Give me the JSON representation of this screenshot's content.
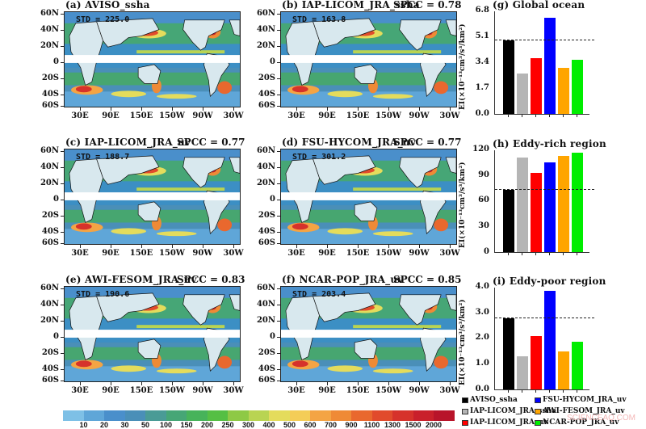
{
  "maps": {
    "lat_labels": [
      "60N",
      "40N",
      "20N",
      "0",
      "20S",
      "40S",
      "60S"
    ],
    "lon_labels": [
      "30E",
      "90E",
      "150E",
      "150W",
      "90W",
      "30W"
    ],
    "panels": [
      {
        "label": "(a) AVISO_ssha",
        "std": "STD = 225.0",
        "spcc": ""
      },
      {
        "label": "(b) IAP-LICOM_JRA_ssha",
        "std": "STD = 163.8",
        "spcc": "SPCC = 0.78"
      },
      {
        "label": "(c) IAP-LICOM_JRA_uv",
        "std": "STD = 188.7",
        "spcc": "SPCC = 0.77"
      },
      {
        "label": "(d) FSU-HYCOM_JRA_uv",
        "std": "STD = 301.2",
        "spcc": "SPCC = 0.77"
      },
      {
        "label": "(e) AWI-FESOM_JRA_uv",
        "std": "STD = 190.6",
        "spcc": "SPCC = 0.83"
      },
      {
        "label": "(f) NCAR-POP_JRA_uv",
        "std": "STD = 203.4",
        "spcc": "SPCC = 0.85"
      }
    ]
  },
  "colorbar": {
    "labels": [
      "10",
      "20",
      "30",
      "50",
      "100",
      "150",
      "200",
      "250",
      "300",
      "400",
      "500",
      "600",
      "700",
      "900",
      "1100",
      "1300",
      "1500",
      "2000"
    ],
    "colors": [
      "#7ec0e6",
      "#5fa6d8",
      "#4a8fcb",
      "#4a8fb8",
      "#4a9b96",
      "#46a676",
      "#47b35a",
      "#55bf44",
      "#8ec945",
      "#b9d452",
      "#e4dc5c",
      "#f4cd57",
      "#f4a444",
      "#ef8a36",
      "#e9682e",
      "#e14b2c",
      "#d6322b",
      "#c9202b",
      "#b8142a"
    ]
  },
  "chart_data": [
    {
      "type": "bar",
      "title": "(g) Global ocean",
      "ylabel": "EI(×10⁻¹³cm³/s³/km²)",
      "yticks": [
        "0.0",
        "1.7",
        "3.4",
        "5.1",
        "6.8"
      ],
      "ylim": [
        0,
        6.8
      ],
      "categories": [
        "AVISO_ssha",
        "IAP-LICOM_JRA_ssha",
        "IAP-LICOM_JRA_uv",
        "FSU-HYCOM_JRA_uv",
        "AWI-FESOM_JRA_uv",
        "NCAR-POP_JRA_uv"
      ],
      "values": [
        4.9,
        2.7,
        3.7,
        6.4,
        3.1,
        3.6
      ],
      "reference_line": 4.9
    },
    {
      "type": "bar",
      "title": "(h) Eddy-rich region",
      "ylabel": "EI(×10⁻¹³cm³/s³/km²)",
      "yticks": [
        "0",
        "30",
        "60",
        "90",
        "120"
      ],
      "ylim": [
        0,
        120
      ],
      "categories": [
        "AVISO_ssha",
        "IAP-LICOM_JRA_ssha",
        "IAP-LICOM_JRA_uv",
        "FSU-HYCOM_JRA_uv",
        "AWI-FESOM_JRA_uv",
        "NCAR-POP_JRA_uv"
      ],
      "values": [
        74,
        112,
        94,
        107,
        114,
        118
      ],
      "reference_line": 74
    },
    {
      "type": "bar",
      "title": "(i) Eddy-poor region",
      "ylabel": "EI(×10⁻¹³cm³/s³/km²)",
      "yticks": [
        "0.0",
        "1.0",
        "2.0",
        "3.0",
        "4.0"
      ],
      "ylim": [
        0,
        4
      ],
      "categories": [
        "AVISO_ssha",
        "IAP-LICOM_JRA_ssha",
        "IAP-LICOM_JRA_uv",
        "FSU-HYCOM_JRA_uv",
        "AWI-FESOM_JRA_uv",
        "NCAR-POP_JRA_uv"
      ],
      "values": [
        2.8,
        1.3,
        2.1,
        3.9,
        1.5,
        1.9
      ],
      "reference_line": 2.8
    }
  ],
  "bar_colors": [
    "#000000",
    "#b5b5b5",
    "#ff0000",
    "#0000ff",
    "#ffa500",
    "#00ee00"
  ],
  "legend": [
    {
      "label": "AVISO_ssha",
      "color": "#000000"
    },
    {
      "label": "FSU-HYCOM_JRA_uv",
      "color": "#0000ff"
    },
    {
      "label": "IAP-LICOM_JRA_ssha",
      "color": "#b5b5b5"
    },
    {
      "label": "AWI-FESOM_JRA_uv",
      "color": "#ffa500"
    },
    {
      "label": "IAP-LICOM_JRA_uv",
      "color": "#ff0000"
    },
    {
      "label": "NCAR-POP_JRA_uv",
      "color": "#00ee00"
    }
  ],
  "watermark": "SCIENCEAQ.COM"
}
